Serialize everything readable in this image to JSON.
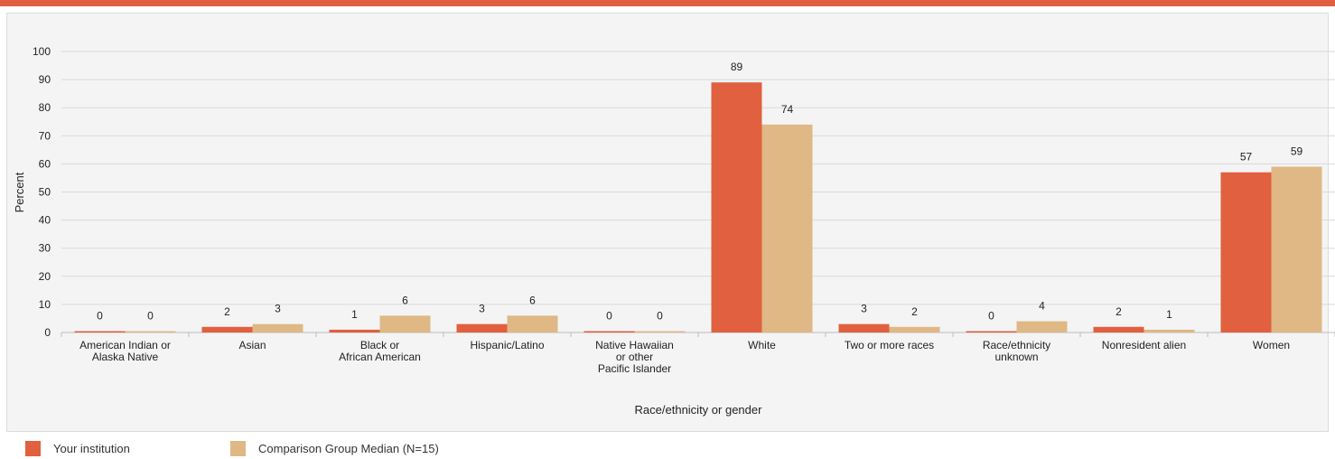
{
  "chart_data": {
    "type": "bar",
    "xlabel": "Race/ethnicity or gender",
    "ylabel": "Percent",
    "ylim": [
      0,
      100
    ],
    "yticks": [
      0,
      10,
      20,
      30,
      40,
      50,
      60,
      70,
      80,
      90,
      100
    ],
    "grid": true,
    "legend_position": "bottom",
    "categories": [
      [
        "American Indian or",
        "Alaska Native"
      ],
      [
        "Asian"
      ],
      [
        "Black or",
        "African American"
      ],
      [
        "Hispanic/Latino"
      ],
      [
        "Native Hawaiian",
        "or other",
        "Pacific Islander"
      ],
      [
        "White"
      ],
      [
        "Two or more races"
      ],
      [
        "Race/ethnicity",
        "unknown"
      ],
      [
        "Nonresident alien"
      ],
      [
        "Women"
      ]
    ],
    "series": [
      {
        "name": "Your institution",
        "color": "#e0603f",
        "values": [
          0,
          2,
          1,
          3,
          0,
          89,
          3,
          0,
          2,
          57
        ]
      },
      {
        "name": "Comparison Group Median (N=15)",
        "color": "#dfb886",
        "values": [
          0,
          3,
          6,
          6,
          0,
          74,
          2,
          4,
          1,
          59
        ]
      }
    ]
  },
  "colors": {
    "accent": "#e0603f",
    "grid": "#d9d9d9",
    "panel": "#f4f4f4"
  }
}
